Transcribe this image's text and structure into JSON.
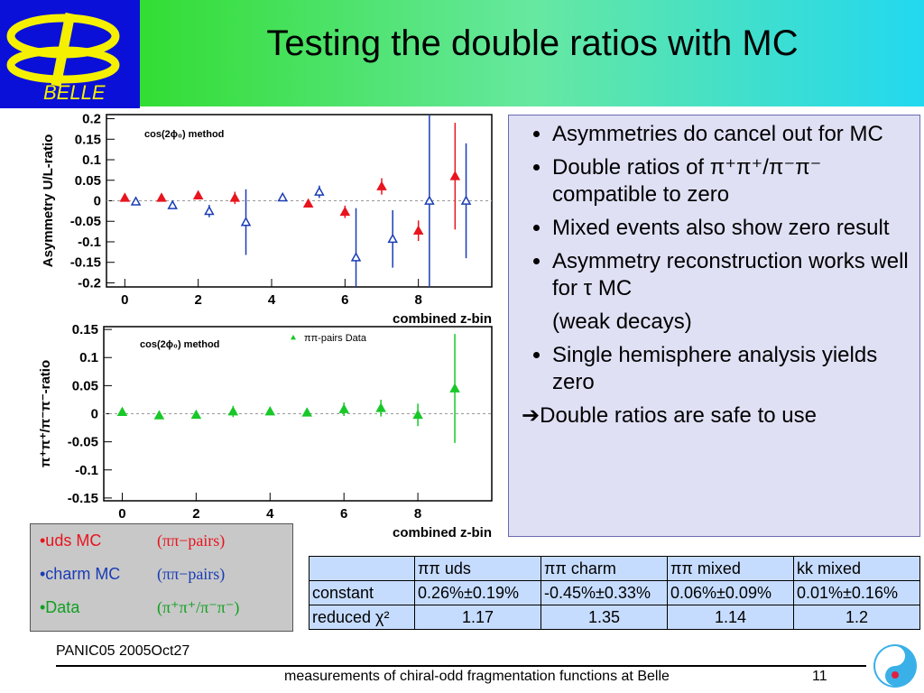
{
  "header": {
    "logo_text": "BELLE",
    "title": "Testing the double ratios with MC"
  },
  "chart_data": [
    {
      "type": "scatter",
      "y_label": "Asymmetry U/L-ratio",
      "x_label": "combined z-bin",
      "annotation": "cos(2ϕ₀) method",
      "xlim": [
        -0.5,
        10
      ],
      "ylim": [
        -0.21,
        0.21
      ],
      "xticks": [
        0,
        2,
        4,
        6,
        8
      ],
      "yticks": [
        0.2,
        0.15,
        0.1,
        0.05,
        0,
        -0.05,
        -0.1,
        -0.15,
        -0.2
      ],
      "reference_line": 0,
      "series": [
        {
          "color": "#e8141e",
          "marker": "filled-triangle",
          "x": [
            0,
            1,
            2,
            3,
            5,
            6,
            7,
            8,
            9
          ],
          "values": [
            0.007,
            0.007,
            0.013,
            0.007,
            -0.007,
            -0.027,
            0.035,
            -0.073,
            0.06
          ],
          "errors": [
            0.004,
            0.004,
            0.004,
            0.015,
            0.004,
            0.015,
            0.02,
            0.025,
            0.13
          ]
        },
        {
          "color": "#1a3cb4",
          "marker": "open-triangle",
          "x": [
            0.3,
            1.3,
            2.3,
            3.3,
            4.3,
            5.3,
            6.3,
            7.3,
            8.3,
            9.3
          ],
          "values": [
            -0.002,
            -0.011,
            -0.025,
            -0.052,
            0.008,
            0.022,
            -0.138,
            -0.093,
            0,
            0
          ],
          "errors": [
            0.004,
            0.004,
            0.015,
            0.08,
            0.004,
            0.015,
            0.12,
            0.07,
            0.5,
            0.14
          ]
        }
      ]
    },
    {
      "type": "scatter",
      "y_label": "π⁺π⁺/π⁻π⁻-ratio",
      "x_label": "combined z-bin",
      "annotation": "cos(2ϕ₀) method",
      "xlim": [
        -0.5,
        10
      ],
      "ylim": [
        -0.155,
        0.155
      ],
      "xticks": [
        0,
        2,
        4,
        6,
        8
      ],
      "yticks": [
        0.15,
        0.1,
        0.05,
        0,
        -0.05,
        -0.1,
        -0.15
      ],
      "reference_line": 0,
      "series": [
        {
          "name": "ππ-pairs Data",
          "color": "#18c828",
          "marker": "filled-triangle",
          "x": [
            0,
            1,
            2,
            3,
            4,
            5,
            6,
            7,
            8,
            9
          ],
          "values": [
            0.003,
            -0.003,
            -0.002,
            0.004,
            0.004,
            0.002,
            0.008,
            0.01,
            -0.002,
            0.045
          ],
          "errors": [
            0.003,
            0.003,
            0.003,
            0.01,
            0.003,
            0.003,
            0.012,
            0.015,
            0.02,
            0.097
          ]
        }
      ]
    }
  ],
  "bullets": [
    "Asymmetries do cancel out for MC",
    "Double ratios of π⁺π⁺/π⁻π⁻ compatible to zero",
    "Mixed events also show zero result",
    "Asymmetry reconstruction works well for τ MC"
  ],
  "bullet_note": "(weak decays)",
  "bullets_after": [
    "Single hemisphere analysis yields zero"
  ],
  "conclusion": "➔Double ratios are safe to use",
  "legend": [
    {
      "label": "•uds MC",
      "note": "(ππ−pairs)",
      "color": "#e8141e"
    },
    {
      "label": "•charm MC",
      "note": "(ππ−pairs)",
      "color": "#1a3cb4"
    },
    {
      "label": "•Data",
      "note": "(π⁺π⁺/π⁻π⁻)",
      "color": "#10a020"
    }
  ],
  "table": {
    "columns": [
      "ππ uds",
      "ππ charm",
      "ππ mixed",
      "kk mixed"
    ],
    "rows": [
      [
        "constant",
        "0.26%±0.19%",
        "-0.45%±0.33%",
        "0.06%±0.09%",
        "0.01%±0.16%"
      ],
      [
        "reduced χ²",
        "1.17",
        "1.35",
        "1.14",
        "1.2"
      ]
    ]
  },
  "footer": {
    "left": "PANIC05 2005Oct27",
    "center": "measurements of chiral-odd fragmentation functions at Belle",
    "page": "11"
  }
}
